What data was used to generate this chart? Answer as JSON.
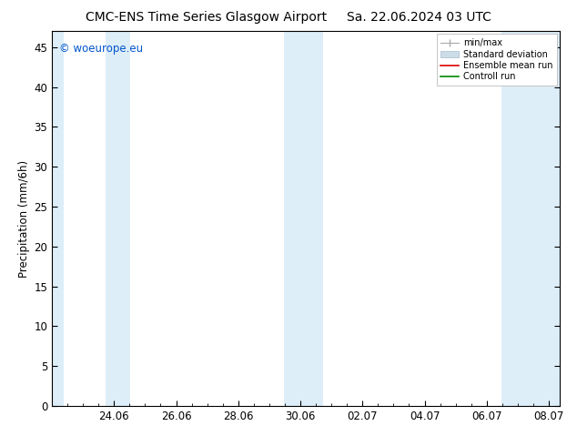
{
  "title_left": "CMC-ENS Time Series Glasgow Airport",
  "title_right": "Sa. 22.06.2024 03 UTC",
  "ylabel": "Precipitation (mm/6h)",
  "watermark": "© woeurope.eu",
  "watermark_color": "#0055cc",
  "ylim": [
    0,
    47
  ],
  "yticks": [
    0,
    5,
    10,
    15,
    20,
    25,
    30,
    35,
    40,
    45
  ],
  "xtick_labels": [
    "24.06",
    "26.06",
    "28.06",
    "30.06",
    "02.07",
    "04.07",
    "06.07",
    "08.07"
  ],
  "xtick_positions": [
    2,
    4,
    6,
    8,
    10,
    12,
    14,
    16
  ],
  "xlim": [
    0.0,
    16.35
  ],
  "shaded_band_color": "#ddeef8",
  "bands": [
    [
      0.0,
      0.38
    ],
    [
      1.72,
      2.52
    ],
    [
      7.48,
      8.72
    ],
    [
      14.48,
      16.35
    ]
  ],
  "bg_color": "#ffffff",
  "spine_color": "#000000",
  "tick_color": "#000000",
  "font_size": 8.5,
  "title_font_size": 10
}
